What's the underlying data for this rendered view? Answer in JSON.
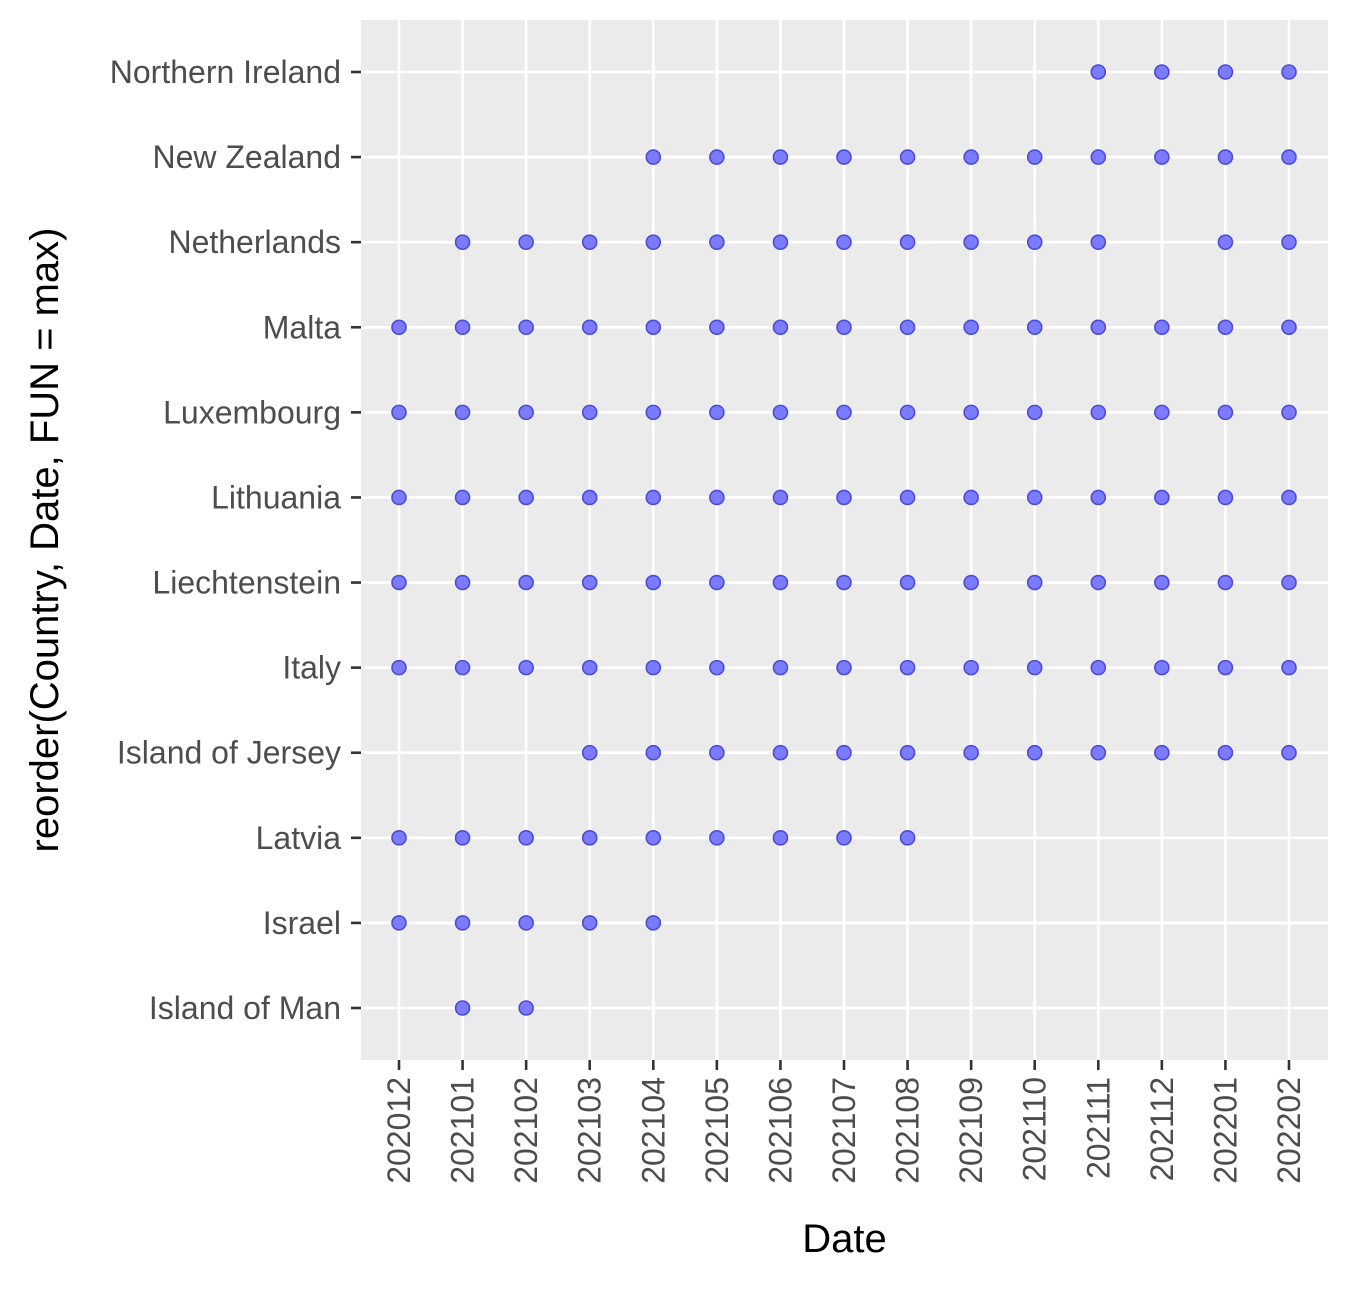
{
  "chart_data": {
    "type": "scatter",
    "xlabel": "Date",
    "ylabel": "reorder(Country, Date, FUN = max)",
    "x_categories": [
      "202012",
      "202101",
      "202102",
      "202103",
      "202104",
      "202105",
      "202106",
      "202107",
      "202108",
      "202109",
      "202110",
      "202111",
      "202112",
      "202201",
      "202202"
    ],
    "y_categories": [
      "Island of Man",
      "Israel",
      "Latvia",
      "Island of Jersey",
      "Italy",
      "Liechtenstein",
      "Lithuania",
      "Luxembourg",
      "Malta",
      "Netherlands",
      "New Zealand",
      "Northern Ireland"
    ],
    "points": [
      {
        "country": "Northern Ireland",
        "dates": [
          "202111",
          "202112",
          "202201",
          "202202"
        ]
      },
      {
        "country": "New Zealand",
        "dates": [
          "202104",
          "202105",
          "202106",
          "202107",
          "202108",
          "202109",
          "202110",
          "202111",
          "202112",
          "202201",
          "202202"
        ]
      },
      {
        "country": "Netherlands",
        "dates": [
          "202101",
          "202102",
          "202103",
          "202104",
          "202105",
          "202106",
          "202107",
          "202108",
          "202109",
          "202110",
          "202111",
          "202201",
          "202202"
        ]
      },
      {
        "country": "Malta",
        "dates": [
          "202012",
          "202101",
          "202102",
          "202103",
          "202104",
          "202105",
          "202106",
          "202107",
          "202108",
          "202109",
          "202110",
          "202111",
          "202112",
          "202201",
          "202202"
        ]
      },
      {
        "country": "Luxembourg",
        "dates": [
          "202012",
          "202101",
          "202102",
          "202103",
          "202104",
          "202105",
          "202106",
          "202107",
          "202108",
          "202109",
          "202110",
          "202111",
          "202112",
          "202201",
          "202202"
        ]
      },
      {
        "country": "Lithuania",
        "dates": [
          "202012",
          "202101",
          "202102",
          "202103",
          "202104",
          "202105",
          "202106",
          "202107",
          "202108",
          "202109",
          "202110",
          "202111",
          "202112",
          "202201",
          "202202"
        ]
      },
      {
        "country": "Liechtenstein",
        "dates": [
          "202012",
          "202101",
          "202102",
          "202103",
          "202104",
          "202105",
          "202106",
          "202107",
          "202108",
          "202109",
          "202110",
          "202111",
          "202112",
          "202201",
          "202202"
        ]
      },
      {
        "country": "Italy",
        "dates": [
          "202012",
          "202101",
          "202102",
          "202103",
          "202104",
          "202105",
          "202106",
          "202107",
          "202108",
          "202109",
          "202110",
          "202111",
          "202112",
          "202201",
          "202202"
        ]
      },
      {
        "country": "Island of Jersey",
        "dates": [
          "202103",
          "202104",
          "202105",
          "202106",
          "202107",
          "202108",
          "202109",
          "202110",
          "202111",
          "202112",
          "202201",
          "202202"
        ]
      },
      {
        "country": "Latvia",
        "dates": [
          "202012",
          "202101",
          "202102",
          "202103",
          "202104",
          "202105",
          "202106",
          "202107",
          "202108"
        ]
      },
      {
        "country": "Israel",
        "dates": [
          "202012",
          "202101",
          "202102",
          "202103",
          "202104"
        ]
      },
      {
        "country": "Island of Man",
        "dates": [
          "202101",
          "202102"
        ]
      }
    ],
    "grid": true,
    "legend": "none",
    "colors": {
      "panel_background": "#ebebeb",
      "grid_line": "#ffffff",
      "point_fill": "#7b7bff",
      "point_stroke": "#4b4bd6",
      "tick_text": "#4d4d4d",
      "axis_title": "#000000",
      "tick_mark": "#333333"
    }
  }
}
